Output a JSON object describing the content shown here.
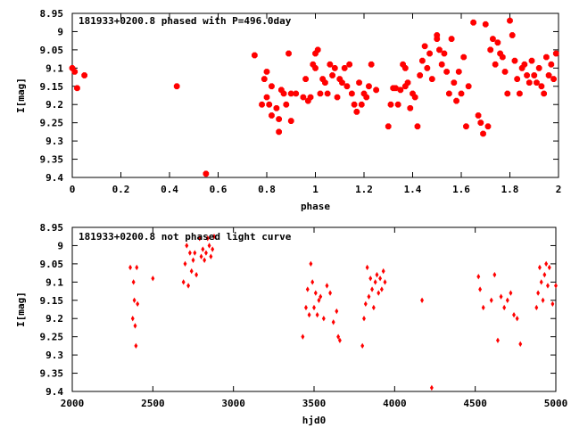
{
  "chart_data": [
    {
      "type": "scatter",
      "title": "181933+0200.8 phased with P=496.0day",
      "xlabel": "phase",
      "ylabel": "I[mag]",
      "xlim": [
        0,
        2
      ],
      "ylim": [
        8.95,
        9.4
      ],
      "y_inverted": true,
      "xticks": [
        "0",
        "0.2",
        "0.4",
        "0.6",
        "0.8",
        "1",
        "1.2",
        "1.4",
        "1.6",
        "1.8",
        "2"
      ],
      "yticks": [
        "8.95",
        "9",
        "9.05",
        "9.1",
        "9.15",
        "9.2",
        "9.25",
        "9.3",
        "9.35",
        "9.4"
      ],
      "grid": false,
      "marker_color": "#ff0000",
      "series": [
        {
          "x": [
            0.0,
            0.01,
            0.02,
            0.05,
            0.43,
            0.55,
            0.75,
            0.78,
            0.79,
            0.8,
            0.8,
            0.81,
            0.82,
            0.82,
            0.84,
            0.85,
            0.85,
            0.86,
            0.87,
            0.88,
            0.89,
            0.9,
            0.9,
            0.92,
            0.95,
            0.96,
            0.97,
            0.98,
            0.99,
            1.0,
            1.0,
            1.01,
            1.02,
            1.03,
            1.04,
            1.05,
            1.06,
            1.07,
            1.08,
            1.09,
            1.1,
            1.11,
            1.12,
            1.13,
            1.14,
            1.15,
            1.16,
            1.17,
            1.18,
            1.19,
            1.2,
            1.21,
            1.22,
            1.23,
            1.25,
            1.3,
            1.31,
            1.32,
            1.33,
            1.34,
            1.35,
            1.36,
            1.37,
            1.37,
            1.38,
            1.39,
            1.4,
            1.41,
            1.42,
            1.43,
            1.44,
            1.45,
            1.46,
            1.47,
            1.48,
            1.5,
            1.5,
            1.51,
            1.52,
            1.53,
            1.54,
            1.55,
            1.56,
            1.57,
            1.58,
            1.59,
            1.6,
            1.61,
            1.62,
            1.63,
            1.65,
            1.67,
            1.68,
            1.69,
            1.7,
            1.71,
            1.72,
            1.73,
            1.74,
            1.75,
            1.76,
            1.77,
            1.78,
            1.79,
            1.8,
            1.81,
            1.82,
            1.83,
            1.84,
            1.85,
            1.86,
            1.87,
            1.88,
            1.89,
            1.9,
            1.91,
            1.92,
            1.93,
            1.94,
            1.95,
            1.96,
            1.97,
            1.98,
            1.99
          ],
          "y": [
            9.1,
            9.11,
            9.155,
            9.12,
            9.15,
            9.39,
            9.065,
            9.2,
            9.13,
            9.11,
            9.18,
            9.2,
            9.15,
            9.23,
            9.21,
            9.275,
            9.24,
            9.16,
            9.17,
            9.2,
            9.06,
            9.245,
            9.17,
            9.17,
            9.18,
            9.13,
            9.19,
            9.18,
            9.09,
            9.1,
            9.06,
            9.05,
            9.17,
            9.13,
            9.14,
            9.17,
            9.09,
            9.12,
            9.1,
            9.18,
            9.13,
            9.14,
            9.1,
            9.15,
            9.09,
            9.17,
            9.2,
            9.22,
            9.14,
            9.2,
            9.17,
            9.18,
            9.15,
            9.09,
            9.16,
            9.26,
            9.2,
            9.155,
            9.155,
            9.2,
            9.16,
            9.09,
            9.15,
            9.1,
            9.14,
            9.21,
            9.17,
            9.18,
            9.26,
            9.12,
            9.08,
            9.04,
            9.1,
            9.06,
            9.13,
            9.02,
            9.01,
            9.05,
            9.09,
            9.06,
            9.11,
            9.17,
            9.02,
            9.14,
            9.19,
            9.11,
            9.17,
            9.07,
            9.26,
            9.15,
            8.975,
            9.23,
            9.25,
            9.28,
            8.98,
            9.26,
            9.05,
            9.02,
            9.09,
            9.03,
            9.06,
            9.07,
            9.11,
            9.17,
            8.97,
            9.01,
            9.08,
            9.13,
            9.17,
            9.1,
            9.09,
            9.12,
            9.14,
            9.08,
            9.12,
            9.14,
            9.1,
            9.15,
            9.17,
            9.07,
            9.12,
            9.09,
            9.13,
            9.06
          ]
        }
      ]
    },
    {
      "type": "scatter",
      "title": "181933+0200.8 not phased light curve",
      "xlabel": "hjd0",
      "ylabel": "I[mag]",
      "xlim": [
        2000,
        5000
      ],
      "ylim": [
        8.95,
        9.4
      ],
      "y_inverted": true,
      "xticks": [
        "2000",
        "2500",
        "3000",
        "3500",
        "4000",
        "4500",
        "5000"
      ],
      "yticks": [
        "8.95",
        "9",
        "9.05",
        "9.1",
        "9.15",
        "9.2",
        "9.25",
        "9.3",
        "9.35",
        "9.4"
      ],
      "grid": false,
      "marker_color": "#ff0000",
      "series": [
        {
          "x": [
            2360,
            2375,
            2380,
            2385,
            2390,
            2395,
            2400,
            2405,
            2500,
            2690,
            2700,
            2710,
            2720,
            2730,
            2740,
            2750,
            2760,
            2770,
            2790,
            2800,
            2810,
            2820,
            2830,
            2840,
            2850,
            2860,
            2870,
            2880,
            3430,
            3450,
            3460,
            3470,
            3480,
            3490,
            3500,
            3510,
            3520,
            3530,
            3540,
            3560,
            3580,
            3600,
            3620,
            3640,
            3650,
            3660,
            3800,
            3810,
            3820,
            3830,
            3840,
            3850,
            3860,
            3870,
            3880,
            3890,
            3900,
            3910,
            3920,
            3930,
            3940,
            4170,
            4230,
            4520,
            4530,
            4550,
            4600,
            4620,
            4640,
            4660,
            4680,
            4700,
            4720,
            4740,
            4760,
            4780,
            4880,
            4890,
            4900,
            4910,
            4920,
            4930,
            4940,
            4950,
            4960,
            4980,
            5000
          ],
          "y": [
            9.06,
            9.2,
            9.1,
            9.15,
            9.22,
            9.275,
            9.06,
            9.16,
            9.09,
            9.1,
            9.05,
            9.0,
            9.11,
            9.02,
            9.07,
            9.04,
            9.02,
            9.08,
            8.98,
            9.03,
            9.01,
            9.04,
            9.02,
            8.98,
            9.0,
            9.03,
            9.01,
            8.975,
            9.25,
            9.17,
            9.12,
            9.19,
            9.05,
            9.1,
            9.17,
            9.13,
            9.19,
            9.15,
            9.14,
            9.2,
            9.11,
            9.13,
            9.21,
            9.18,
            9.25,
            9.26,
            9.275,
            9.2,
            9.16,
            9.06,
            9.14,
            9.09,
            9.12,
            9.17,
            9.1,
            9.08,
            9.13,
            9.09,
            9.12,
            9.07,
            9.1,
            9.15,
            9.39,
            9.085,
            9.12,
            9.17,
            9.15,
            9.08,
            9.26,
            9.14,
            9.17,
            9.15,
            9.13,
            9.19,
            9.2,
            9.27,
            9.17,
            9.13,
            9.06,
            9.1,
            9.15,
            9.08,
            9.05,
            9.11,
            9.06,
            9.16,
            9.11
          ]
        }
      ]
    }
  ]
}
